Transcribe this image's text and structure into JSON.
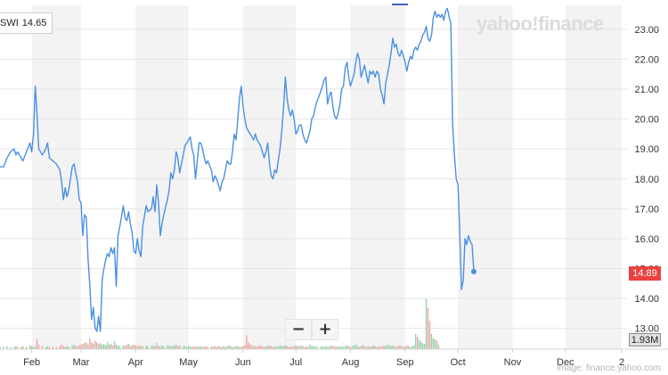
{
  "legend": {
    "symbol": "SWI",
    "value": "14.65"
  },
  "watermark": "yahoo!finance",
  "credit": "Image: finance.yahoo.com",
  "zoom": {
    "minus": "−",
    "plus": "+"
  },
  "last_price_label": "14.89",
  "last_volume_label": "1.93M",
  "chart_data": {
    "type": "line",
    "ylim": [
      12.9,
      23.8
    ],
    "y_ticks": [
      13,
      14,
      15,
      16,
      17,
      18,
      19,
      20,
      21,
      22,
      23
    ],
    "y_tick_labels": [
      "13.00",
      "14.00",
      "15.00",
      "16.00",
      "17.00",
      "18.00",
      "19.00",
      "20.00",
      "21.00",
      "22.00",
      "23.00"
    ],
    "x_labels": [
      "Feb",
      "Mar",
      "Apr",
      "May",
      "Jun",
      "Jul",
      "Aug",
      "Sep",
      "Oct",
      "Nov",
      "Dec",
      "2"
    ],
    "x_label_days": [
      31,
      59,
      90,
      120,
      151,
      181,
      212,
      243,
      273,
      304,
      334,
      366
    ],
    "x_range_days": [
      13,
      369
    ],
    "shaded_months": [
      [
        31,
        59
      ],
      [
        90,
        120
      ],
      [
        151,
        181
      ],
      [
        212,
        243
      ],
      [
        273,
        304
      ],
      [
        334,
        366
      ]
    ],
    "series": [
      {
        "color": "#4a90e2",
        "points": [
          [
            13,
            18.4
          ],
          [
            15,
            18.4
          ],
          [
            17,
            18.7
          ],
          [
            19,
            18.9
          ],
          [
            21,
            19.0
          ],
          [
            22,
            18.8
          ],
          [
            23,
            18.9
          ],
          [
            25,
            18.7
          ],
          [
            26,
            18.6
          ],
          [
            28,
            18.9
          ],
          [
            30,
            19.2
          ],
          [
            31,
            18.9
          ],
          [
            32,
            19.5
          ],
          [
            33,
            21.1
          ],
          [
            34,
            20.2
          ],
          [
            35,
            19.0
          ],
          [
            37,
            18.8
          ],
          [
            39,
            19.0
          ],
          [
            40,
            19.2
          ],
          [
            41,
            18.7
          ],
          [
            43,
            18.6
          ],
          [
            45,
            18.5
          ],
          [
            47,
            18.3
          ],
          [
            48,
            17.9
          ],
          [
            49,
            17.3
          ],
          [
            50,
            17.7
          ],
          [
            51,
            17.4
          ],
          [
            52,
            17.6
          ],
          [
            54,
            18.4
          ],
          [
            55,
            18.5
          ],
          [
            56,
            18.2
          ],
          [
            57,
            17.9
          ],
          [
            58,
            17.3
          ],
          [
            59,
            17.2
          ],
          [
            60,
            16.1
          ],
          [
            61,
            16.8
          ],
          [
            62,
            16.7
          ],
          [
            63,
            15.3
          ],
          [
            64,
            14.4
          ],
          [
            65,
            13.3
          ],
          [
            66,
            13.7
          ],
          [
            67,
            13.0
          ],
          [
            68,
            12.9
          ],
          [
            69,
            13.4
          ],
          [
            70,
            12.9
          ],
          [
            71,
            14.6
          ],
          [
            72,
            15.0
          ],
          [
            73,
            15.3
          ],
          [
            74,
            15.5
          ],
          [
            75,
            15.4
          ],
          [
            76,
            15.7
          ],
          [
            77,
            15.5
          ],
          [
            78,
            15.7
          ],
          [
            79,
            14.4
          ],
          [
            80,
            16.1
          ],
          [
            81,
            16.4
          ],
          [
            83,
            17.1
          ],
          [
            84,
            16.7
          ],
          [
            85,
            16.6
          ],
          [
            86,
            16.9
          ],
          [
            87,
            16.5
          ],
          [
            88,
            16.2
          ],
          [
            89,
            15.6
          ],
          [
            90,
            15.5
          ],
          [
            91,
            16.0
          ],
          [
            92,
            15.6
          ],
          [
            93,
            15.4
          ],
          [
            94,
            16.4
          ],
          [
            96,
            17.1
          ],
          [
            97,
            16.9
          ],
          [
            99,
            17.0
          ],
          [
            100,
            17.4
          ],
          [
            101,
            16.9
          ],
          [
            102,
            17.8
          ],
          [
            103,
            17.2
          ],
          [
            104,
            16.1
          ],
          [
            105,
            16.5
          ],
          [
            106,
            16.8
          ],
          [
            108,
            17.3
          ],
          [
            109,
            17.6
          ],
          [
            110,
            18.2
          ],
          [
            111,
            18.0
          ],
          [
            112,
            18.3
          ],
          [
            113,
            18.9
          ],
          [
            114,
            18.7
          ],
          [
            115,
            18.2
          ],
          [
            117,
            18.8
          ],
          [
            118,
            19.1
          ],
          [
            119,
            19.2
          ],
          [
            120,
            19.3
          ],
          [
            121,
            19.4
          ],
          [
            122,
            19.0
          ],
          [
            123,
            18.8
          ],
          [
            124,
            18.0
          ],
          [
            125,
            18.6
          ],
          [
            126,
            19.2
          ],
          [
            127,
            19.2
          ],
          [
            128,
            19.0
          ],
          [
            129,
            18.7
          ],
          [
            130,
            18.5
          ],
          [
            131,
            18.6
          ],
          [
            133,
            18.3
          ],
          [
            134,
            17.9
          ],
          [
            135,
            18.1
          ],
          [
            136,
            18.0
          ],
          [
            137,
            17.8
          ],
          [
            138,
            17.6
          ],
          [
            139,
            17.9
          ],
          [
            140,
            18.0
          ],
          [
            141,
            18.3
          ],
          [
            142,
            18.6
          ],
          [
            143,
            18.5
          ],
          [
            144,
            18.5
          ],
          [
            145,
            18.9
          ],
          [
            146,
            19.5
          ],
          [
            147,
            19.3
          ],
          [
            148,
            20.0
          ],
          [
            149,
            20.7
          ],
          [
            150,
            21.1
          ],
          [
            151,
            20.4
          ],
          [
            152,
            20.0
          ],
          [
            153,
            19.7
          ],
          [
            154,
            19.6
          ],
          [
            155,
            19.5
          ],
          [
            156,
            19.4
          ],
          [
            157,
            19.3
          ],
          [
            158,
            19.5
          ],
          [
            159,
            19.3
          ],
          [
            160,
            19.2
          ],
          [
            161,
            19.1
          ],
          [
            162,
            18.9
          ],
          [
            163,
            18.7
          ],
          [
            164,
            18.9
          ],
          [
            165,
            19.2
          ],
          [
            166,
            18.5
          ],
          [
            167,
            18.1
          ],
          [
            168,
            18.0
          ],
          [
            169,
            18.3
          ],
          [
            170,
            18.2
          ],
          [
            171,
            18.6
          ],
          [
            172,
            19.0
          ],
          [
            173,
            19.6
          ],
          [
            174,
            20.4
          ],
          [
            175,
            21.4
          ],
          [
            176,
            20.7
          ],
          [
            177,
            20.3
          ],
          [
            178,
            20.1
          ],
          [
            179,
            20.3
          ],
          [
            180,
            20.0
          ],
          [
            181,
            19.5
          ],
          [
            182,
            19.6
          ],
          [
            183,
            19.8
          ],
          [
            184,
            19.8
          ],
          [
            185,
            19.5
          ],
          [
            186,
            19.3
          ],
          [
            187,
            19.2
          ],
          [
            188,
            19.4
          ],
          [
            189,
            19.6
          ],
          [
            190,
            20.0
          ],
          [
            191,
            20.1
          ],
          [
            192,
            20.4
          ],
          [
            193,
            20.6
          ],
          [
            195,
            20.9
          ],
          [
            196,
            21.1
          ],
          [
            197,
            21.3
          ],
          [
            198,
            21.4
          ],
          [
            199,
            20.5
          ],
          [
            200,
            20.8
          ],
          [
            201,
            20.9
          ],
          [
            202,
            20.4
          ],
          [
            203,
            20.1
          ],
          [
            204,
            20.0
          ],
          [
            205,
            20.2
          ],
          [
            206,
            20.5
          ],
          [
            207,
            21.0
          ],
          [
            208,
            21.1
          ],
          [
            209,
            21.7
          ],
          [
            210,
            21.9
          ],
          [
            211,
            21.4
          ],
          [
            212,
            21.1
          ],
          [
            213,
            21.3
          ],
          [
            214,
            21.5
          ],
          [
            215,
            21.9
          ],
          [
            216,
            22.2
          ],
          [
            217,
            22.0
          ],
          [
            218,
            21.4
          ],
          [
            219,
            21.6
          ],
          [
            220,
            21.8
          ],
          [
            221,
            21.5
          ],
          [
            222,
            21.2
          ],
          [
            223,
            21.6
          ],
          [
            224,
            21.5
          ],
          [
            225,
            21.6
          ],
          [
            226,
            21.4
          ],
          [
            227,
            21.6
          ],
          [
            228,
            21.5
          ],
          [
            229,
            21.0
          ],
          [
            230,
            20.8
          ],
          [
            231,
            20.5
          ],
          [
            232,
            21.2
          ],
          [
            233,
            21.5
          ],
          [
            234,
            21.8
          ],
          [
            235,
            22.2
          ],
          [
            236,
            22.7
          ],
          [
            237,
            22.4
          ],
          [
            238,
            22.5
          ],
          [
            239,
            22.2
          ],
          [
            240,
            22.1
          ],
          [
            241,
            22.3
          ],
          [
            242,
            22.1
          ],
          [
            243,
            21.9
          ],
          [
            244,
            21.6
          ],
          [
            245,
            21.9
          ],
          [
            246,
            22.1
          ],
          [
            247,
            22.0
          ],
          [
            248,
            22.3
          ],
          [
            249,
            22.4
          ],
          [
            250,
            22.3
          ],
          [
            251,
            22.5
          ],
          [
            252,
            22.6
          ],
          [
            253,
            22.8
          ],
          [
            254,
            22.9
          ],
          [
            255,
            23.1
          ],
          [
            256,
            22.7
          ],
          [
            257,
            22.6
          ],
          [
            258,
            22.8
          ],
          [
            259,
            23.4
          ],
          [
            260,
            23.6
          ],
          [
            261,
            23.4
          ],
          [
            262,
            23.5
          ],
          [
            263,
            23.4
          ],
          [
            264,
            23.5
          ],
          [
            265,
            23.3
          ],
          [
            266,
            23.6
          ],
          [
            267,
            23.7
          ],
          [
            268,
            23.4
          ],
          [
            269,
            23.2
          ],
          [
            270,
            19.8
          ],
          [
            271,
            18.8
          ],
          [
            272,
            18.0
          ],
          [
            273,
            17.8
          ],
          [
            274,
            16.3
          ],
          [
            275,
            14.3
          ],
          [
            276,
            14.6
          ],
          [
            277,
            16.0
          ],
          [
            278,
            15.8
          ],
          [
            279,
            16.1
          ],
          [
            280,
            15.9
          ],
          [
            281,
            15.8
          ],
          [
            282,
            14.9
          ]
        ]
      }
    ],
    "volume": [
      0.3,
      0.3,
      0.4,
      0.3,
      0.3,
      0.4,
      0.3,
      0.3,
      0.4,
      0.3,
      0.5,
      0.4,
      0.3,
      0.3,
      1.3,
      0.6,
      0.4,
      0.3,
      0.4,
      0.3,
      0.3,
      0.3,
      0.4,
      0.6,
      0.4,
      0.3,
      0.4,
      0.3,
      0.5,
      0.6,
      0.4,
      0.4,
      0.5,
      0.6,
      0.7,
      0.8,
      0.9,
      0.6,
      1.4,
      0.9,
      0.7,
      1.1,
      0.9,
      0.7,
      0.8,
      0.6,
      0.7,
      0.5,
      0.9,
      0.6,
      0.7,
      0.5,
      1.1,
      0.6,
      0.5,
      0.4,
      0.5,
      0.4,
      0.6,
      0.7,
      0.4,
      0.5,
      0.6,
      0.5,
      0.4,
      0.5,
      0.4,
      0.4,
      0.5,
      0.4,
      0.4,
      0.5,
      0.4,
      0.8,
      0.4,
      0.4,
      0.5,
      0.4,
      0.5,
      0.4,
      0.4,
      0.4,
      0.5,
      0.6,
      0.4,
      0.5,
      0.4,
      0.4,
      0.3,
      0.4,
      0.4,
      0.3,
      0.4,
      0.3,
      0.4,
      0.3,
      0.4,
      0.3,
      0.3,
      0.4,
      0.3,
      0.4,
      0.3,
      0.4,
      0.3,
      0.4,
      0.3,
      0.3,
      0.4,
      0.3,
      0.4,
      0.5,
      0.4,
      0.3,
      0.3,
      0.4,
      0.4,
      0.3,
      0.3,
      0.4,
      0.5,
      1.8,
      0.9,
      0.6,
      0.5,
      0.4,
      0.4,
      0.3,
      0.5,
      0.4,
      0.4,
      0.3,
      0.4,
      0.4,
      0.5,
      0.4,
      0.3,
      0.4,
      0.3,
      0.4,
      0.5,
      0.4,
      0.4,
      0.5,
      0.4,
      0.3,
      0.4,
      0.3,
      0.4,
      0.5,
      0.4,
      0.4,
      0.5,
      0.4,
      0.3,
      0.4,
      0.3,
      0.6,
      0.4,
      0.4,
      0.3,
      0.4,
      0.3,
      0.4,
      0.3,
      0.4,
      0.3,
      0.4,
      0.5,
      0.4,
      0.4,
      0.3,
      0.4,
      0.3,
      0.4,
      0.3,
      0.4,
      0.5,
      0.4,
      0.3,
      0.4,
      0.5,
      0.6,
      0.4,
      0.3,
      0.4,
      0.5,
      0.4,
      0.3,
      0.4,
      0.3,
      0.4,
      0.5,
      0.4,
      0.3,
      0.4,
      0.3,
      0.4,
      0.5,
      0.4,
      0.6,
      0.5,
      0.4,
      0.5,
      0.4,
      0.3,
      0.4,
      0.5,
      0.4,
      0.3,
      0.4,
      0.5,
      0.4,
      0.3,
      0.4,
      0.5,
      2.0,
      1.6,
      1.2,
      1.0,
      0.8,
      0.7,
      6.6,
      5.4,
      3.7,
      2.0,
      1.4,
      1.3,
      1.1,
      0.6
    ],
    "volume_max_millions": 7.0
  }
}
